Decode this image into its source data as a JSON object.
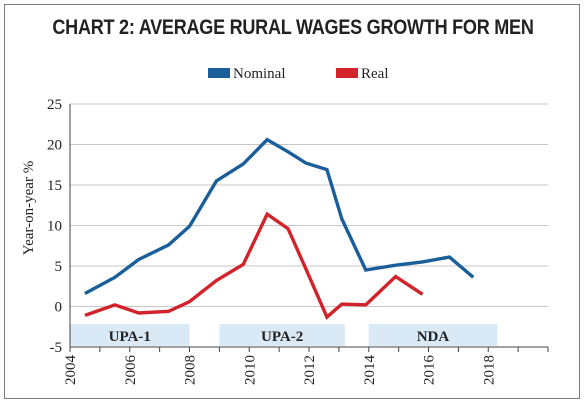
{
  "title": "CHART 2: AVERAGE RURAL WAGES GROWTH FOR MEN",
  "chart_data": {
    "type": "line",
    "ylabel": "Year-on-year %",
    "ylim": [
      -5,
      25
    ],
    "yticks": [
      "-5",
      "0",
      "5",
      "10",
      "15",
      "20",
      "25"
    ],
    "ytick_values": [
      -5,
      0,
      5,
      10,
      15,
      20,
      25
    ],
    "xlim": [
      2004,
      2020
    ],
    "xticks": [
      "2004",
      "2006",
      "2008",
      "2010",
      "2012",
      "2014",
      "2016",
      "2018"
    ],
    "xtick_values": [
      2004,
      2006,
      2008,
      2010,
      2012,
      2014,
      2016,
      2018
    ],
    "grid": "horizontal",
    "legend_position": "top-center",
    "series": [
      {
        "name": "Nominal",
        "color": "#1a5e9a",
        "x": [
          2004.5,
          2005.5,
          2006.3,
          2007.3,
          2008.0,
          2008.9,
          2009.8,
          2010.6,
          2011.3,
          2011.9,
          2012.6,
          2013.1,
          2013.9,
          2014.9,
          2015.8,
          2016.7,
          2017.5,
          2018.2
        ],
        "values": [
          1.6,
          3.6,
          5.8,
          7.6,
          9.9,
          15.5,
          17.6,
          20.6,
          19.1,
          17.7,
          16.9,
          10.8,
          4.5,
          5.1,
          5.5,
          6.1,
          3.6,
          null
        ]
      },
      {
        "name": "Real",
        "color": "#d2232a",
        "x": [
          2004.5,
          2005.5,
          2006.3,
          2007.3,
          2008.0,
          2008.9,
          2009.8,
          2010.6,
          2011.3,
          2011.9,
          2012.6,
          2013.1,
          2013.9,
          2014.9,
          2015.8,
          2016.7,
          2017.5,
          2018.2
        ],
        "values": [
          -1.1,
          0.2,
          -0.8,
          -0.6,
          0.6,
          3.2,
          5.2,
          11.4,
          9.6,
          4.6,
          -1.3,
          0.3,
          0.2,
          3.7,
          1.5,
          null,
          null,
          null
        ]
      }
    ],
    "bands": [
      {
        "label": "UPA-1",
        "from": 2004,
        "to": 2008
      },
      {
        "label": "UPA-2",
        "from": 2009,
        "to": 2013.2
      },
      {
        "label": "NDA",
        "from": 2014,
        "to": 2018.3
      }
    ],
    "band_color": "#d9e9f5"
  }
}
